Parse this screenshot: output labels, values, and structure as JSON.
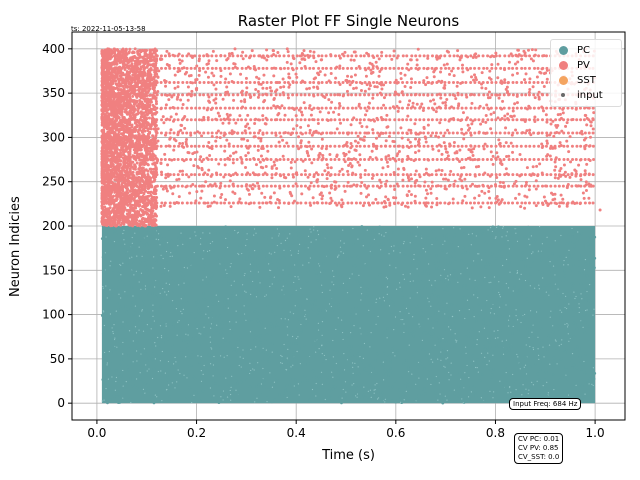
{
  "figure": {
    "timestamp": "ts: 2022-11-05-13-58",
    "freq_text": "Input Freq: 684 Hz",
    "cv_lines": [
      "CV PC: 0.01",
      "CV PV: 0.85",
      "CV_SST: 0.0"
    ]
  },
  "colors": {
    "PC": "#5f9ea0",
    "PV": "#f08080",
    "SST": "#f4a460",
    "input": "#696969",
    "grid": "#b0b0b0"
  },
  "chart_data": {
    "type": "scatter",
    "title": "Raster Plot FF Single Neurons",
    "xlabel": "Time (s)",
    "ylabel": "Neuron Indicies",
    "xlim": [
      -0.05,
      1.06
    ],
    "ylim": [
      -19,
      419
    ],
    "xticks": [
      0.0,
      0.2,
      0.4,
      0.6,
      0.8,
      1.0
    ],
    "xtick_labels": [
      "0.0",
      "0.2",
      "0.4",
      "0.6",
      "0.8",
      "1.0"
    ],
    "yticks": [
      0,
      50,
      100,
      150,
      200,
      250,
      300,
      350,
      400
    ],
    "ytick_labels": [
      "0",
      "50",
      "100",
      "150",
      "200",
      "250",
      "300",
      "350",
      "400"
    ],
    "grid": true,
    "legend_position": "top-right",
    "legend": [
      "PC",
      "PV",
      "SST",
      "input"
    ],
    "series": [
      {
        "name": "PC",
        "description_of_spikes": "dense continuous firing",
        "neuron_range": [
          0,
          200
        ],
        "time_range": [
          0.01,
          1.0
        ]
      },
      {
        "name": "PV",
        "neuron_range": [
          200,
          400
        ],
        "dense_time_range": [
          0.01,
          0.12
        ],
        "sparse_time_range": [
          0.12,
          1.0
        ],
        "regular_rows": [
          226,
          245,
          258,
          275,
          290,
          305,
          320,
          333,
          348,
          362,
          378,
          392
        ],
        "outlier_points": [
          [
            1.01,
            218
          ]
        ]
      },
      {
        "name": "SST",
        "neuron_range": [],
        "time_range": []
      },
      {
        "name": "input",
        "neuron_range": [],
        "time_range": []
      }
    ]
  }
}
